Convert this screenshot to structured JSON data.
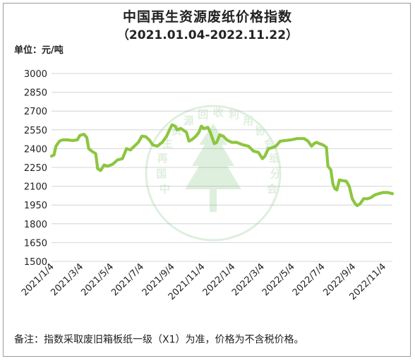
{
  "chart_data": {
    "type": "line",
    "title": "中国再生资源废纸价格指数",
    "subtitle": "（2021.01.04-2022.11.22）",
    "ylabel": "单位：元/吨",
    "ylim": [
      1500,
      3000
    ],
    "yticks": [
      1500,
      1650,
      1800,
      1950,
      2100,
      2250,
      2400,
      2550,
      2700,
      2850,
      3000
    ],
    "xticks": [
      "2021/1/4",
      "2021/3/4",
      "2021/5/4",
      "2021/7/4",
      "2021/9/4",
      "2021/11/4",
      "2022/1/4",
      "2022/3/4",
      "2022/5/4",
      "2022/7/4",
      "2022/9/4",
      "2022/11/4"
    ],
    "xrange": [
      "2021-01-04",
      "2022-11-22"
    ],
    "grid": true,
    "line_color": "#8cc63f",
    "series": [
      {
        "name": "",
        "points": [
          [
            "2021-01-04",
            2340
          ],
          [
            "2021-01-09",
            2350
          ],
          [
            "2021-01-13",
            2420
          ],
          [
            "2021-01-20",
            2460
          ],
          [
            "2021-01-26",
            2470
          ],
          [
            "2021-02-05",
            2470
          ],
          [
            "2021-02-15",
            2465
          ],
          [
            "2021-02-25",
            2470
          ],
          [
            "2021-03-02",
            2505
          ],
          [
            "2021-03-10",
            2515
          ],
          [
            "2021-03-16",
            2490
          ],
          [
            "2021-03-20",
            2400
          ],
          [
            "2021-03-26",
            2380
          ],
          [
            "2021-04-03",
            2360
          ],
          [
            "2021-04-07",
            2240
          ],
          [
            "2021-04-13",
            2225
          ],
          [
            "2021-04-20",
            2270
          ],
          [
            "2021-04-27",
            2260
          ],
          [
            "2021-05-07",
            2275
          ],
          [
            "2021-05-17",
            2310
          ],
          [
            "2021-05-27",
            2320
          ],
          [
            "2021-06-04",
            2400
          ],
          [
            "2021-06-12",
            2390
          ],
          [
            "2021-06-20",
            2420
          ],
          [
            "2021-06-28",
            2450
          ],
          [
            "2021-07-05",
            2500
          ],
          [
            "2021-07-13",
            2495
          ],
          [
            "2021-07-20",
            2470
          ],
          [
            "2021-07-27",
            2430
          ],
          [
            "2021-08-05",
            2420
          ],
          [
            "2021-08-15",
            2450
          ],
          [
            "2021-08-24",
            2500
          ],
          [
            "2021-08-31",
            2560
          ],
          [
            "2021-09-04",
            2590
          ],
          [
            "2021-09-10",
            2580
          ],
          [
            "2021-09-14",
            2550
          ],
          [
            "2021-09-22",
            2560
          ],
          [
            "2021-10-03",
            2530
          ],
          [
            "2021-10-08",
            2460
          ],
          [
            "2021-10-15",
            2475
          ],
          [
            "2021-10-22",
            2500
          ],
          [
            "2021-10-28",
            2530
          ],
          [
            "2021-11-02",
            2580
          ],
          [
            "2021-11-07",
            2560
          ],
          [
            "2021-11-15",
            2570
          ],
          [
            "2021-11-20",
            2530
          ],
          [
            "2021-11-28",
            2440
          ],
          [
            "2021-12-03",
            2450
          ],
          [
            "2021-12-09",
            2510
          ],
          [
            "2021-12-16",
            2500
          ],
          [
            "2021-12-23",
            2470
          ],
          [
            "2022-01-02",
            2450
          ],
          [
            "2022-01-12",
            2450
          ],
          [
            "2022-01-25",
            2430
          ],
          [
            "2022-02-05",
            2420
          ],
          [
            "2022-02-15",
            2380
          ],
          [
            "2022-02-25",
            2370
          ],
          [
            "2022-03-05",
            2320
          ],
          [
            "2022-03-10",
            2340
          ],
          [
            "2022-03-17",
            2400
          ],
          [
            "2022-03-23",
            2405
          ],
          [
            "2022-04-01",
            2420
          ],
          [
            "2022-04-10",
            2460
          ],
          [
            "2022-04-20",
            2465
          ],
          [
            "2022-05-01",
            2470
          ],
          [
            "2022-05-14",
            2480
          ],
          [
            "2022-05-28",
            2480
          ],
          [
            "2022-06-05",
            2460
          ],
          [
            "2022-06-12",
            2420
          ],
          [
            "2022-06-17",
            2440
          ],
          [
            "2022-06-22",
            2450
          ],
          [
            "2022-06-28",
            2440
          ],
          [
            "2022-07-05",
            2430
          ],
          [
            "2022-07-12",
            2410
          ],
          [
            "2022-07-15",
            2260
          ],
          [
            "2022-07-21",
            2230
          ],
          [
            "2022-07-25",
            2120
          ],
          [
            "2022-07-29",
            2080
          ],
          [
            "2022-08-02",
            2070
          ],
          [
            "2022-08-07",
            2150
          ],
          [
            "2022-08-13",
            2145
          ],
          [
            "2022-08-21",
            2140
          ],
          [
            "2022-08-27",
            2100
          ],
          [
            "2022-09-02",
            2000
          ],
          [
            "2022-09-08",
            1960
          ],
          [
            "2022-09-12",
            1945
          ],
          [
            "2022-09-18",
            1960
          ],
          [
            "2022-09-25",
            2000
          ],
          [
            "2022-10-03",
            2000
          ],
          [
            "2022-10-10",
            2010
          ],
          [
            "2022-10-17",
            2030
          ],
          [
            "2022-10-25",
            2040
          ],
          [
            "2022-11-03",
            2050
          ],
          [
            "2022-11-13",
            2050
          ],
          [
            "2022-11-22",
            2040
          ]
        ]
      }
    ]
  },
  "note": "备注：指数采取废旧箱板纸一级（X1）为准，价格为不含税价格。",
  "watermark": {
    "text": "中国再生资源回收利用协会纸分会",
    "color": "#6fb86f"
  }
}
